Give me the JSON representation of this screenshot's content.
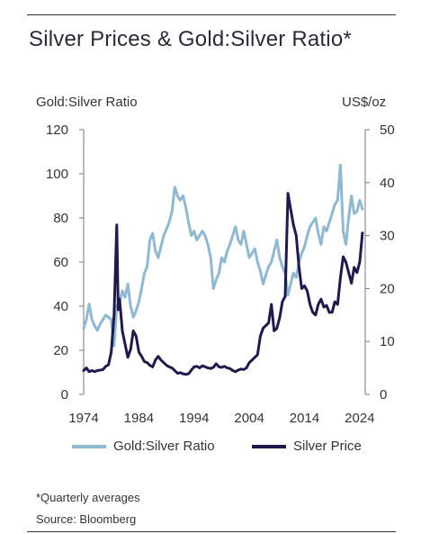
{
  "title": "Silver Prices & Gold:Silver Ratio*",
  "footnote": "*Quarterly averages",
  "source": "Source: Bloomberg",
  "colors": {
    "ratio": "#8fb8d3",
    "silver": "#1f1a4d",
    "axis": "#777777",
    "text": "#333333"
  },
  "chart_data": {
    "type": "line",
    "left_axis": {
      "label": "Gold:Silver Ratio",
      "range": [
        0,
        120
      ],
      "ticks": [
        0,
        20,
        40,
        60,
        80,
        100,
        120
      ]
    },
    "right_axis": {
      "label": "US$/oz",
      "range": [
        0,
        50
      ],
      "ticks": [
        0,
        10,
        20,
        30,
        40,
        50
      ]
    },
    "x_axis": {
      "range": [
        1974,
        2025
      ],
      "ticks": [
        1974,
        1984,
        1994,
        2004,
        2014,
        2024
      ]
    },
    "legend_position": "bottom",
    "grid": false,
    "series": [
      {
        "name": "Gold:Silver Ratio",
        "axis": "left",
        "color": "#8fb8d3",
        "x": [
          1974,
          1974.5,
          1975,
          1975.5,
          1976,
          1976.5,
          1977,
          1977.5,
          1978,
          1978.5,
          1979,
          1979.5,
          1980,
          1980.5,
          1981,
          1981.5,
          1982,
          1982.5,
          1983,
          1983.5,
          1984,
          1984.5,
          1985,
          1985.5,
          1986,
          1986.5,
          1987,
          1987.5,
          1988,
          1988.5,
          1989,
          1989.5,
          1990,
          1990.5,
          1991,
          1991.5,
          1992,
          1992.5,
          1993,
          1993.5,
          1994,
          1994.5,
          1995,
          1995.5,
          1996,
          1996.5,
          1997,
          1997.5,
          1998,
          1998.5,
          1999,
          1999.5,
          2000,
          2000.5,
          2001,
          2001.5,
          2002,
          2002.5,
          2003,
          2003.5,
          2004,
          2004.5,
          2005,
          2005.5,
          2006,
          2006.5,
          2007,
          2007.5,
          2008,
          2008.5,
          2009,
          2009.5,
          2010,
          2010.5,
          2011,
          2011.5,
          2012,
          2012.5,
          2013,
          2013.5,
          2014,
          2014.5,
          2015,
          2015.5,
          2016,
          2016.5,
          2017,
          2017.5,
          2018,
          2018.5,
          2019,
          2019.5,
          2020,
          2020.5,
          2021,
          2021.5,
          2022,
          2022.5,
          2023,
          2023.5,
          2024,
          2024.5
        ],
        "values": [
          30,
          34,
          41,
          34,
          31,
          29,
          32,
          34,
          36,
          35,
          34,
          22,
          40,
          42,
          47,
          44,
          50,
          40,
          35,
          38,
          42,
          48,
          55,
          58,
          70,
          73,
          65,
          62,
          67,
          72,
          75,
          78,
          83,
          94,
          90,
          88,
          90,
          85,
          78,
          72,
          74,
          70,
          72,
          74,
          72,
          68,
          62,
          48,
          52,
          55,
          62,
          60,
          65,
          68,
          72,
          76,
          70,
          68,
          74,
          68,
          62,
          64,
          66,
          60,
          56,
          50,
          54,
          58,
          60,
          65,
          70,
          62,
          58,
          55,
          45,
          50,
          55,
          53,
          60,
          64,
          67,
          72,
          76,
          78,
          80,
          73,
          68,
          76,
          74,
          78,
          82,
          86,
          88,
          104,
          74,
          68,
          80,
          90,
          82,
          83,
          88,
          84
        ]
      },
      {
        "name": "Silver Price",
        "axis": "right",
        "color": "#1f1a4d",
        "x": [
          1974,
          1974.5,
          1975,
          1975.5,
          1976,
          1976.5,
          1977,
          1977.5,
          1978,
          1978.5,
          1979,
          1979.5,
          1980,
          1980.25,
          1980.5,
          1981,
          1981.5,
          1982,
          1982.5,
          1983,
          1983.5,
          1984,
          1984.5,
          1985,
          1985.5,
          1986,
          1986.5,
          1987,
          1987.5,
          1988,
          1988.5,
          1989,
          1989.5,
          1990,
          1990.5,
          1991,
          1991.5,
          1992,
          1992.5,
          1993,
          1993.5,
          1994,
          1994.5,
          1995,
          1995.5,
          1996,
          1996.5,
          1997,
          1997.5,
          1998,
          1998.5,
          1999,
          1999.5,
          2000,
          2000.5,
          2001,
          2001.5,
          2002,
          2002.5,
          2003,
          2003.5,
          2004,
          2004.5,
          2005,
          2005.5,
          2006,
          2006.5,
          2007,
          2007.5,
          2008,
          2008.5,
          2009,
          2009.5,
          2010,
          2010.5,
          2011,
          2011.5,
          2012,
          2012.5,
          2013,
          2013.5,
          2014,
          2014.5,
          2015,
          2015.5,
          2016,
          2016.5,
          2017,
          2017.5,
          2018,
          2018.5,
          2019,
          2019.5,
          2020,
          2020.5,
          2021,
          2021.5,
          2022,
          2022.5,
          2023,
          2023.5,
          2024,
          2024.5
        ],
        "values": [
          4.5,
          5,
          4.3,
          4.5,
          4.3,
          4.5,
          4.6,
          4.7,
          5.3,
          5.6,
          8,
          15,
          32,
          16,
          18,
          12,
          9.5,
          7,
          8.5,
          12,
          11,
          8,
          7.2,
          6.2,
          6,
          5.5,
          5.2,
          6.5,
          7.2,
          6.5,
          6,
          5.5,
          5.2,
          5,
          4.5,
          4,
          4.1,
          3.9,
          3.8,
          3.9,
          4.6,
          5.2,
          5.3,
          5,
          5.4,
          5.2,
          5,
          4.9,
          5.1,
          5.8,
          5.2,
          5.1,
          5.3,
          5,
          4.9,
          4.5,
          4.3,
          4.6,
          4.8,
          4.7,
          5,
          6,
          6.5,
          7,
          7.5,
          11,
          12.5,
          13,
          13.5,
          17,
          12,
          12.5,
          14.5,
          17.5,
          18.5,
          38,
          35,
          32,
          30,
          24,
          20,
          20.5,
          19.5,
          17,
          15.5,
          15,
          17,
          18,
          16.5,
          16.8,
          15.5,
          15.5,
          17.5,
          17,
          22,
          26,
          25,
          23,
          21,
          24,
          23,
          25,
          30.5
        ]
      }
    ]
  }
}
